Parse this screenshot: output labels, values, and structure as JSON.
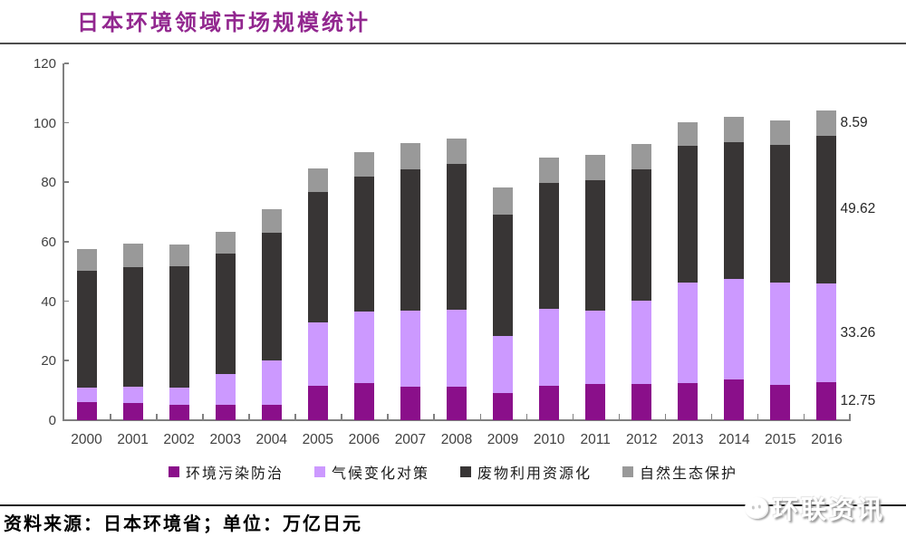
{
  "page": {
    "title": "日本环境领域市场规模统计",
    "source_note": "资料来源：日本环境省；单位：万亿日元",
    "logo_text": "环联资讯"
  },
  "colors": {
    "title": "#92278F",
    "axis": "#808080",
    "axis_text": "#404040",
    "annotation_text": "#262626"
  },
  "chart_data": {
    "type": "bar",
    "stacked": true,
    "title": "日本环境领域市场规模统计",
    "unit": "万亿日元",
    "grid": false,
    "legend_position": "bottom",
    "categories": [
      "2000",
      "2001",
      "2002",
      "2003",
      "2004",
      "2005",
      "2006",
      "2007",
      "2008",
      "2009",
      "2010",
      "2011",
      "2012",
      "2013",
      "2014",
      "2015",
      "2016"
    ],
    "series": [
      {
        "name": "环境污染防治",
        "color": "#8A0F8A",
        "values": [
          6.1,
          5.8,
          5.3,
          5.3,
          5.3,
          11.6,
          12.4,
          11.4,
          11.4,
          9.1,
          11.6,
          12.1,
          12.1,
          12.4,
          13.7,
          11.9,
          12.75
        ],
        "last_label": "12.75"
      },
      {
        "name": "气候变化对策",
        "color": "#CC99FF",
        "values": [
          4.8,
          5.6,
          5.8,
          10.2,
          14.8,
          21.4,
          24.0,
          25.5,
          25.7,
          19.3,
          25.8,
          24.8,
          28.1,
          33.9,
          33.9,
          34.4,
          33.26
        ],
        "last_label": "33.26"
      },
      {
        "name": "废物利用资源化",
        "color": "#383535",
        "values": [
          39.5,
          40.0,
          40.6,
          40.5,
          43.0,
          43.7,
          45.6,
          47.4,
          49.0,
          40.8,
          42.3,
          43.9,
          44.3,
          45.9,
          45.9,
          46.2,
          49.62
        ],
        "last_label": "49.62"
      },
      {
        "name": "自然生态保护",
        "color": "#999999",
        "values": [
          7.1,
          8.0,
          7.5,
          7.4,
          8.0,
          8.0,
          8.1,
          8.9,
          8.6,
          9.0,
          8.7,
          8.3,
          8.5,
          8.1,
          8.4,
          8.3,
          8.59
        ],
        "last_label": "8.59"
      }
    ],
    "ylim": [
      0,
      120
    ],
    "yticks": [
      0,
      20,
      40,
      60,
      80,
      100,
      120
    ],
    "xlabel": "",
    "ylabel": ""
  }
}
